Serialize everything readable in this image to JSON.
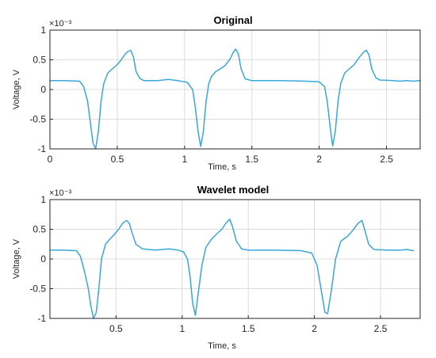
{
  "chart_data": [
    {
      "type": "line",
      "title": "Original",
      "xlabel": "Time, s",
      "ylabel": "Voltage, V",
      "y_multiplier": "×10⁻³",
      "xlim": [
        0,
        2.75
      ],
      "ylim": [
        -1,
        1
      ],
      "x_ticks": [
        0,
        0.5,
        1,
        1.5,
        2,
        2.5
      ],
      "x_tick_labels": [
        "0",
        "0.5",
        "1",
        "1.5",
        "2",
        "2.5"
      ],
      "y_ticks": [
        -1,
        -0.5,
        0,
        0.5,
        1
      ],
      "y_tick_labels": [
        "-1",
        "-0.5",
        "0",
        "0.5",
        "1"
      ],
      "grid": true,
      "line_color": "#3aa7d6",
      "series": [
        {
          "x": [
            0,
            0.1,
            0.22,
            0.25,
            0.28,
            0.3,
            0.32,
            0.34,
            0.36,
            0.38,
            0.4,
            0.43,
            0.46,
            0.48,
            0.5,
            0.53,
            0.56,
            0.58,
            0.6,
            0.62,
            0.64,
            0.67,
            0.7,
            0.8,
            0.88,
            0.95,
            1.02,
            1.06,
            1.08,
            1.1,
            1.12,
            1.14,
            1.16,
            1.18,
            1.2,
            1.23,
            1.26,
            1.3,
            1.34,
            1.36,
            1.38,
            1.4,
            1.42,
            1.45,
            1.5,
            1.7,
            1.9,
            2.0,
            2.04,
            2.06,
            2.08,
            2.1,
            2.12,
            2.14,
            2.16,
            2.19,
            2.22,
            2.26,
            2.3,
            2.33,
            2.35,
            2.37,
            2.39,
            2.42,
            2.45,
            2.55,
            2.6,
            2.65,
            2.7,
            2.75
          ],
          "y": [
            0.15,
            0.15,
            0.14,
            0.05,
            -0.2,
            -0.55,
            -0.9,
            -1.0,
            -0.7,
            -0.2,
            0.1,
            0.28,
            0.34,
            0.38,
            0.42,
            0.5,
            0.6,
            0.64,
            0.66,
            0.55,
            0.3,
            0.18,
            0.15,
            0.15,
            0.17,
            0.15,
            0.12,
            0.0,
            -0.3,
            -0.7,
            -0.96,
            -0.7,
            -0.2,
            0.1,
            0.22,
            0.3,
            0.34,
            0.4,
            0.52,
            0.62,
            0.68,
            0.6,
            0.35,
            0.18,
            0.15,
            0.15,
            0.14,
            0.13,
            0.05,
            -0.2,
            -0.6,
            -0.95,
            -0.7,
            -0.2,
            0.1,
            0.28,
            0.34,
            0.42,
            0.55,
            0.63,
            0.66,
            0.58,
            0.35,
            0.2,
            0.16,
            0.15,
            0.14,
            0.15,
            0.14,
            0.15
          ]
        }
      ]
    },
    {
      "type": "line",
      "title": "Wavelet model",
      "xlabel": "Time, s",
      "ylabel": "Voltage, V",
      "y_multiplier": "×10⁻³",
      "xlim": [
        0,
        2.8
      ],
      "ylim": [
        -1,
        1
      ],
      "x_ticks": [
        0.5,
        1,
        1.5,
        2,
        2.5
      ],
      "x_tick_labels": [
        "0.5",
        "1",
        "1.5",
        "2",
        "2.5"
      ],
      "y_ticks": [
        -1,
        -0.5,
        0,
        0.5,
        1
      ],
      "y_tick_labels": [
        "-1",
        "-0.5",
        "0",
        "0.5",
        "1"
      ],
      "grid": true,
      "line_color": "#3aa7d6",
      "series": [
        {
          "x": [
            0,
            0.1,
            0.2,
            0.23,
            0.26,
            0.29,
            0.31,
            0.33,
            0.35,
            0.37,
            0.39,
            0.42,
            0.46,
            0.49,
            0.52,
            0.55,
            0.58,
            0.6,
            0.62,
            0.65,
            0.7,
            0.8,
            0.9,
            0.97,
            1.01,
            1.04,
            1.06,
            1.08,
            1.1,
            1.12,
            1.15,
            1.18,
            1.22,
            1.26,
            1.3,
            1.33,
            1.36,
            1.38,
            1.41,
            1.45,
            1.5,
            1.7,
            1.9,
            1.98,
            2.02,
            2.05,
            2.08,
            2.1,
            2.13,
            2.16,
            2.2,
            2.25,
            2.29,
            2.33,
            2.36,
            2.38,
            2.41,
            2.45,
            2.55,
            2.65,
            2.7,
            2.75
          ],
          "y": [
            0.15,
            0.15,
            0.14,
            0.05,
            -0.2,
            -0.5,
            -0.8,
            -1.0,
            -0.9,
            -0.5,
            0.0,
            0.25,
            0.35,
            0.42,
            0.5,
            0.6,
            0.65,
            0.6,
            0.45,
            0.25,
            0.17,
            0.15,
            0.17,
            0.15,
            0.12,
            0.0,
            -0.3,
            -0.75,
            -0.95,
            -0.6,
            -0.1,
            0.2,
            0.33,
            0.42,
            0.5,
            0.6,
            0.67,
            0.55,
            0.3,
            0.17,
            0.15,
            0.15,
            0.14,
            0.1,
            -0.1,
            -0.5,
            -0.9,
            -0.92,
            -0.5,
            0.0,
            0.3,
            0.38,
            0.48,
            0.6,
            0.65,
            0.5,
            0.25,
            0.16,
            0.15,
            0.15,
            0.16,
            0.14
          ]
        }
      ]
    }
  ]
}
